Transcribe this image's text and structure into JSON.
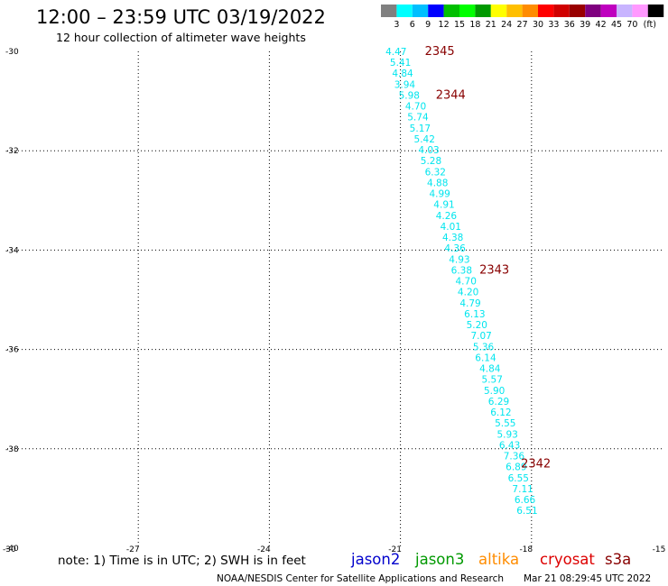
{
  "header": {
    "title": "12:00 – 23:59 UTC 03/19/2022",
    "subtitle": "12 hour collection of altimeter wave heights"
  },
  "colorbar": {
    "colors": [
      "#808080",
      "#00ffff",
      "#00bfff",
      "#0000ff",
      "#00bf00",
      "#00ff00",
      "#009900",
      "#ffff00",
      "#ffbf00",
      "#ff8c00",
      "#ff0000",
      "#d00000",
      "#990000",
      "#7f007f",
      "#bf00bf",
      "#c8b4ff",
      "#ff99ff",
      "#000000"
    ],
    "labels": [
      "3",
      "6",
      "9",
      "12",
      "15",
      "18",
      "21",
      "24",
      "27",
      "30",
      "33",
      "36",
      "39",
      "42",
      "45",
      "70"
    ],
    "unit": "(ft)"
  },
  "footer": {
    "note": "note: 1) Time is in UTC; 2) SWH is in feet",
    "credit": "NOAA/NESDIS Center for Satellite Applications and Research",
    "timestamp": "Mar 21 08:29:45 UTC 2022",
    "satellites": [
      {
        "name": "jason2",
        "color": "#0000cc"
      },
      {
        "name": "jason3",
        "color": "#009900"
      },
      {
        "name": "altika",
        "color": "#ff8c00"
      },
      {
        "name": "cryosat",
        "color": "#dd0000"
      },
      {
        "name": "s3a",
        "color": "#880000"
      }
    ]
  },
  "chart_data": {
    "type": "scatter",
    "xlim": [
      -30,
      -15
    ],
    "ylim": [
      -40,
      -30
    ],
    "x_ticks": [
      "-30",
      "-27",
      "-24",
      "-21",
      "-18",
      "-15"
    ],
    "y_ticks": [
      "-30",
      "-32",
      "-34",
      "-36",
      "-38",
      "-40"
    ],
    "grid": true,
    "point_color": "#00e5ee",
    "time_label_color": "#880000",
    "points": [
      {
        "x": -21.1,
        "y": -30.0,
        "v": "4.47"
      },
      {
        "x": -21.0,
        "y": -30.22,
        "v": "5.41"
      },
      {
        "x": -20.95,
        "y": -30.44,
        "v": "4.84"
      },
      {
        "x": -20.9,
        "y": -30.66,
        "v": "3.94"
      },
      {
        "x": -20.8,
        "y": -30.88,
        "v": "5.98"
      },
      {
        "x": -20.65,
        "y": -31.1,
        "v": "4.70"
      },
      {
        "x": -20.6,
        "y": -31.32,
        "v": "5.74"
      },
      {
        "x": -20.55,
        "y": -31.54,
        "v": "5.17"
      },
      {
        "x": -20.45,
        "y": -31.76,
        "v": "5.42"
      },
      {
        "x": -20.35,
        "y": -31.98,
        "v": "4.03"
      },
      {
        "x": -20.3,
        "y": -32.2,
        "v": "5.28"
      },
      {
        "x": -20.2,
        "y": -32.42,
        "v": "6.32"
      },
      {
        "x": -20.15,
        "y": -32.64,
        "v": "4.88"
      },
      {
        "x": -20.1,
        "y": -32.86,
        "v": "4.99"
      },
      {
        "x": -20.0,
        "y": -33.08,
        "v": "4.91"
      },
      {
        "x": -19.95,
        "y": -33.3,
        "v": "4.26"
      },
      {
        "x": -19.85,
        "y": -33.52,
        "v": "4.01"
      },
      {
        "x": -19.8,
        "y": -33.74,
        "v": "4.38"
      },
      {
        "x": -19.75,
        "y": -33.96,
        "v": "4.36"
      },
      {
        "x": -19.65,
        "y": -34.18,
        "v": "4.93"
      },
      {
        "x": -19.6,
        "y": -34.4,
        "v": "6.38"
      },
      {
        "x": -19.5,
        "y": -34.62,
        "v": "4.70"
      },
      {
        "x": -19.45,
        "y": -34.84,
        "v": "4.20"
      },
      {
        "x": -19.4,
        "y": -35.06,
        "v": "4.79"
      },
      {
        "x": -19.3,
        "y": -35.28,
        "v": "6.13"
      },
      {
        "x": -19.25,
        "y": -35.5,
        "v": "5.20"
      },
      {
        "x": -19.15,
        "y": -35.72,
        "v": "7.07"
      },
      {
        "x": -19.1,
        "y": -35.94,
        "v": "5.36"
      },
      {
        "x": -19.05,
        "y": -36.16,
        "v": "6.14"
      },
      {
        "x": -18.95,
        "y": -36.38,
        "v": "4.84"
      },
      {
        "x": -18.9,
        "y": -36.6,
        "v": "5.57"
      },
      {
        "x": -18.85,
        "y": -36.82,
        "v": "5.90"
      },
      {
        "x": -18.75,
        "y": -37.04,
        "v": "6.29"
      },
      {
        "x": -18.7,
        "y": -37.26,
        "v": "6.12"
      },
      {
        "x": -18.6,
        "y": -37.48,
        "v": "5.55"
      },
      {
        "x": -18.55,
        "y": -37.7,
        "v": "5.93"
      },
      {
        "x": -18.5,
        "y": -37.92,
        "v": "6.43"
      },
      {
        "x": -18.4,
        "y": -38.14,
        "v": "7.36"
      },
      {
        "x": -18.35,
        "y": -38.36,
        "v": "6.89"
      },
      {
        "x": -18.3,
        "y": -38.58,
        "v": "6.55"
      },
      {
        "x": -18.2,
        "y": -38.8,
        "v": "7.11"
      },
      {
        "x": -18.15,
        "y": -39.02,
        "v": "6.66"
      },
      {
        "x": -18.1,
        "y": -39.24,
        "v": "6.51"
      }
    ],
    "time_labels": [
      {
        "x": -20.1,
        "y": -30.0,
        "t": "2345"
      },
      {
        "x": -19.85,
        "y": -30.88,
        "t": "2344"
      },
      {
        "x": -18.85,
        "y": -34.4,
        "t": "2343"
      },
      {
        "x": -17.9,
        "y": -38.3,
        "t": "2342"
      }
    ]
  }
}
